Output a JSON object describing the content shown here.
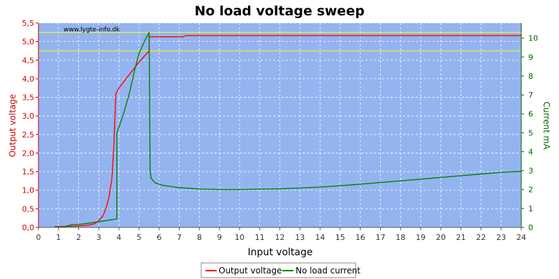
{
  "chart_data": {
    "type": "line",
    "title": "No load voltage sweep",
    "watermark": "www.lygte-info.dk",
    "xlabel": "Input voltage",
    "ylabel_left": "Output voltage",
    "ylabel_right": "Current mA",
    "xlim": [
      0,
      24
    ],
    "ylim_left": [
      0,
      5.5
    ],
    "ylim_right": [
      0,
      10.8
    ],
    "x_ticks": [
      "0",
      "1",
      "2",
      "3",
      "4",
      "5",
      "6",
      "7",
      "8",
      "9",
      "10",
      "11",
      "12",
      "13",
      "14",
      "15",
      "16",
      "17",
      "18",
      "19",
      "20",
      "21",
      "22",
      "23",
      "24"
    ],
    "y_left_ticks": [
      "0,0",
      "0,5",
      "1,0",
      "1,5",
      "2,0",
      "2,5",
      "3,0",
      "3,5",
      "4,0",
      "4,5",
      "5,0",
      "5,5"
    ],
    "y_right_ticks": [
      "0",
      "1",
      "2",
      "3",
      "4",
      "5",
      "6",
      "7",
      "8",
      "9",
      "10"
    ],
    "grid": true,
    "legend_position": "bottom",
    "reference_lines_left": [
      5.25,
      4.75
    ],
    "series": [
      {
        "name": "Output voltage",
        "axis": "left",
        "color": "#ff0000",
        "points": [
          [
            0.8,
            0.02
          ],
          [
            1.5,
            0.03
          ],
          [
            2.0,
            0.04
          ],
          [
            2.5,
            0.06
          ],
          [
            2.8,
            0.1
          ],
          [
            3.0,
            0.18
          ],
          [
            3.2,
            0.3
          ],
          [
            3.35,
            0.5
          ],
          [
            3.5,
            0.8
          ],
          [
            3.65,
            1.3
          ],
          [
            3.75,
            2.2
          ],
          [
            3.85,
            3.6
          ],
          [
            4.0,
            3.75
          ],
          [
            4.5,
            4.1
          ],
          [
            5.0,
            4.45
          ],
          [
            5.5,
            4.75
          ],
          [
            5.5,
            5.13
          ],
          [
            7.2,
            5.13
          ],
          [
            7.3,
            5.16
          ],
          [
            24.0,
            5.16
          ]
        ]
      },
      {
        "name": "No load current",
        "axis": "right",
        "color": "#008000",
        "points": [
          [
            0.8,
            0.02
          ],
          [
            1.3,
            0.03
          ],
          [
            1.5,
            0.1
          ],
          [
            1.7,
            0.15
          ],
          [
            2.0,
            0.15
          ],
          [
            2.5,
            0.22
          ],
          [
            3.0,
            0.3
          ],
          [
            3.5,
            0.38
          ],
          [
            3.9,
            0.45
          ],
          [
            3.9,
            5.0
          ],
          [
            4.2,
            5.9
          ],
          [
            4.5,
            7.0
          ],
          [
            4.8,
            8.4
          ],
          [
            5.0,
            9.2
          ],
          [
            5.3,
            9.9
          ],
          [
            5.5,
            10.3
          ],
          [
            5.55,
            3.0
          ],
          [
            5.6,
            2.6
          ],
          [
            5.8,
            2.35
          ],
          [
            6.2,
            2.22
          ],
          [
            7.0,
            2.1
          ],
          [
            8.0,
            2.03
          ],
          [
            9.0,
            2.0
          ],
          [
            10.0,
            2.0
          ],
          [
            11.0,
            2.02
          ],
          [
            12.0,
            2.04
          ],
          [
            13.0,
            2.08
          ],
          [
            14.0,
            2.13
          ],
          [
            15.0,
            2.2
          ],
          [
            16.0,
            2.28
          ],
          [
            17.0,
            2.37
          ],
          [
            18.0,
            2.46
          ],
          [
            19.0,
            2.55
          ],
          [
            20.0,
            2.64
          ],
          [
            21.0,
            2.73
          ],
          [
            22.0,
            2.82
          ],
          [
            23.0,
            2.91
          ],
          [
            24.0,
            2.96
          ]
        ]
      }
    ],
    "colors": {
      "plot_background": "#94b4f0",
      "grid": "#ffffff",
      "reference_line": "#ffff00",
      "left_axis": "#cc0000",
      "right_axis": "#006600"
    }
  }
}
